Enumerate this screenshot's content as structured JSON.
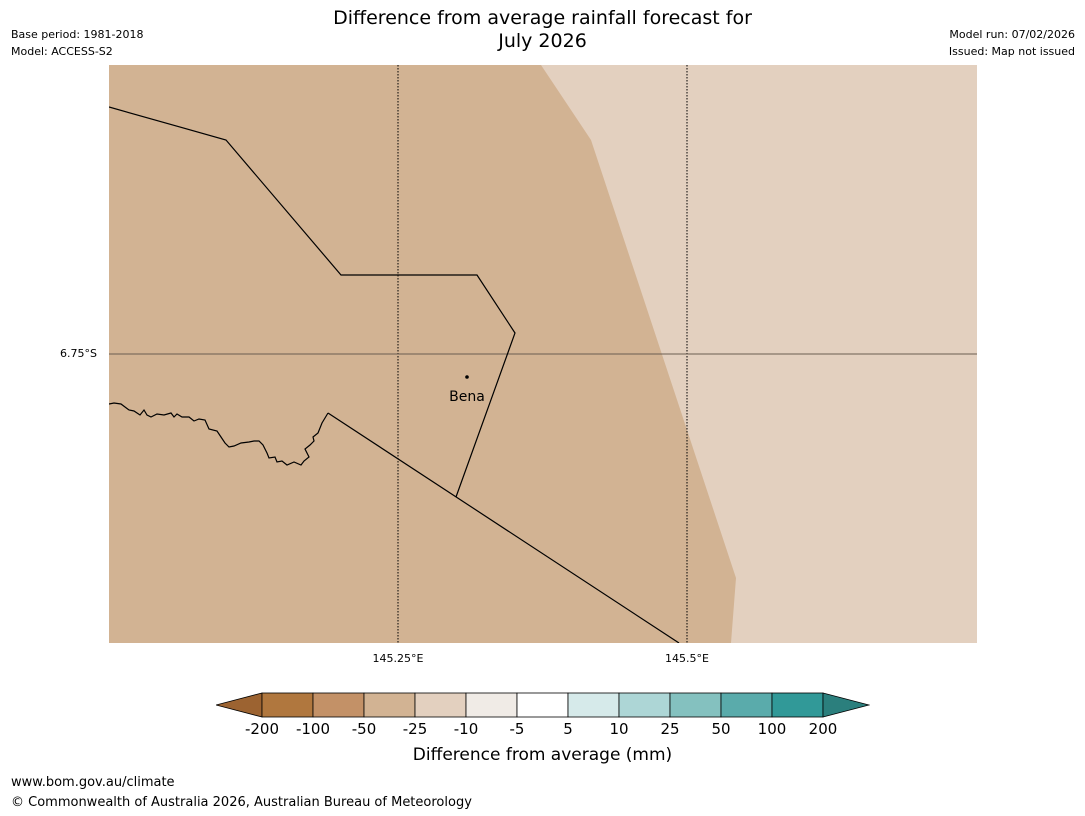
{
  "title": {
    "line1": "Difference from average rainfall forecast for",
    "line2": "July 2026"
  },
  "meta_left": {
    "base_period": "Base period: 1981-2018",
    "model": "Model: ACCESS-S2"
  },
  "meta_right": {
    "model_run": "Model run: 07/02/2026",
    "issued": "Issued: Map not issued"
  },
  "map": {
    "place": "Bena",
    "lat_label": "6.75°S",
    "lon_labels": [
      "145.25°E",
      "145.5°E"
    ],
    "colors": {
      "region_minus50_to_minus25": "#d2b393",
      "region_minus25_to_minus10": "#e3d0bf"
    }
  },
  "colorbar": {
    "title": "Difference from average (mm)",
    "ticks": [
      "-200",
      "-100",
      "-50",
      "-25",
      "-10",
      "-5",
      "5",
      "10",
      "25",
      "50",
      "100",
      "200"
    ],
    "colors": [
      "#9c6331",
      "#b0773e",
      "#c39167",
      "#d2b393",
      "#e3d0bf",
      "#f0ebe6",
      "#ffffff",
      "#d6eaea",
      "#add6d6",
      "#84c1bf",
      "#5aabab",
      "#319998",
      "#2b7f7d"
    ]
  },
  "footer": {
    "url": "www.bom.gov.au/climate",
    "copyright": "© Commonwealth of Australia 2026, Australian Bureau of Meteorology"
  }
}
